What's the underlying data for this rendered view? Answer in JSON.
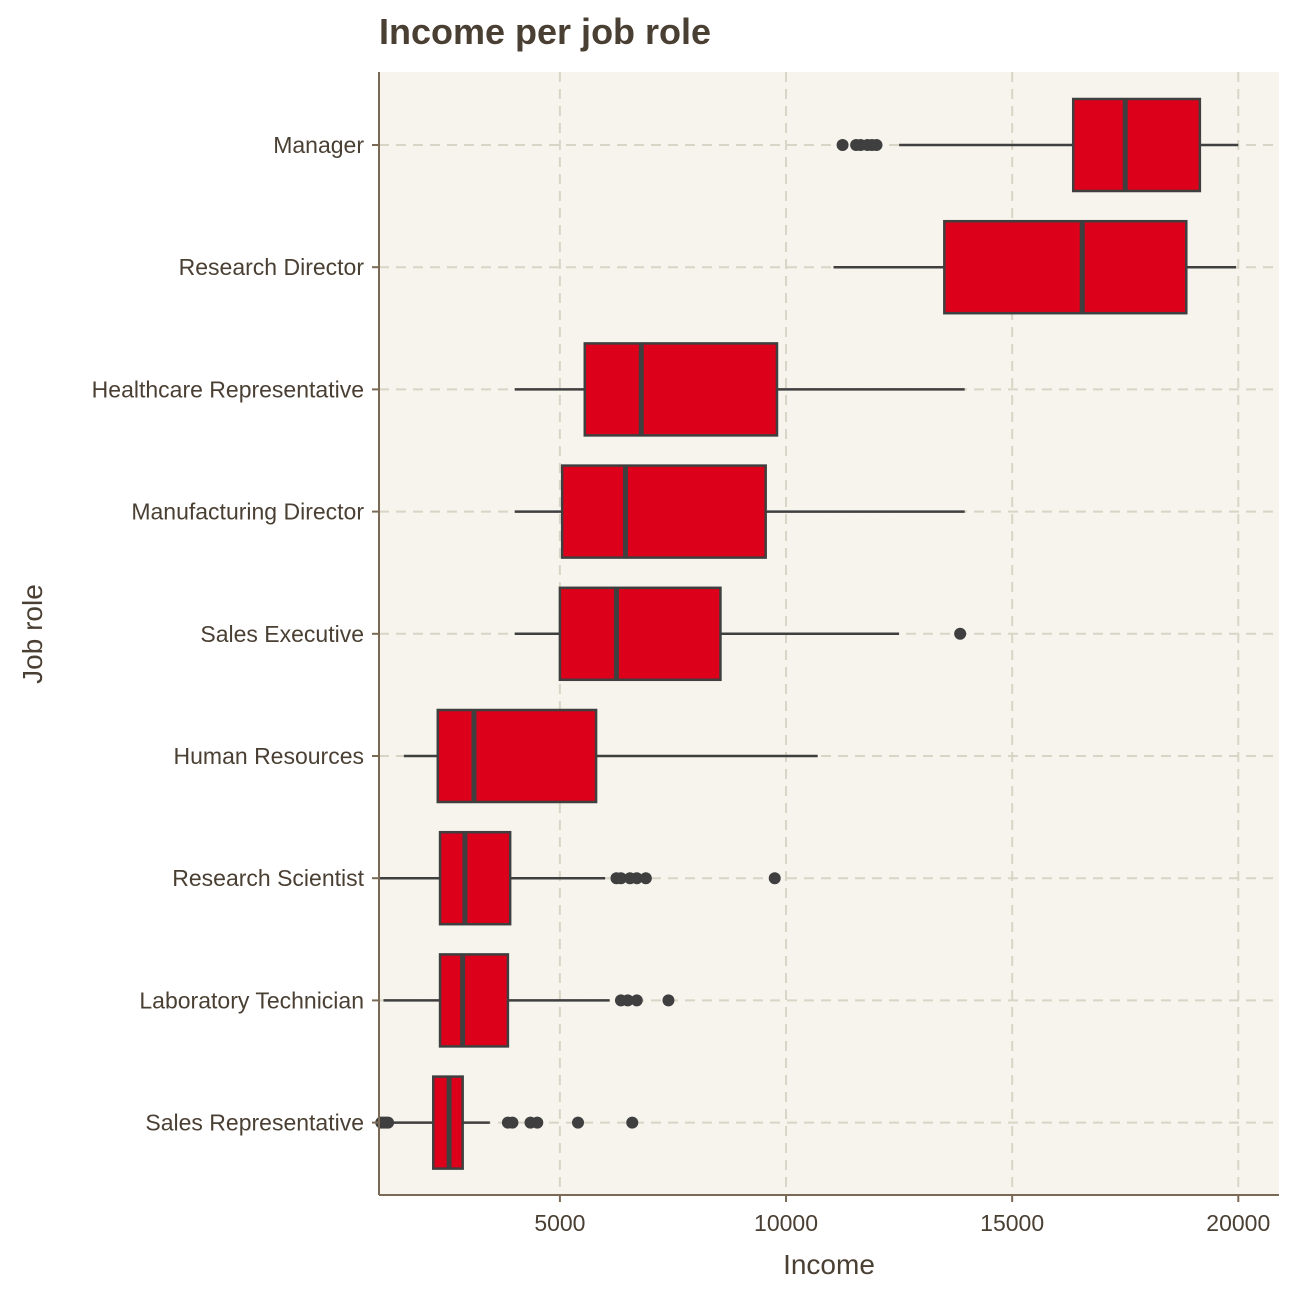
{
  "chart_data": {
    "type": "boxplot",
    "orientation": "horizontal",
    "title": "Income per job role",
    "xlabel": "Income",
    "ylabel": "Job role",
    "xlim": [
      1000,
      20900
    ],
    "xticks": [
      5000,
      10000,
      15000,
      20000
    ],
    "grid": true,
    "legend": "none",
    "colors": {
      "box_fill": "#dc001a",
      "box_stroke": "#3f3f3f",
      "panel_bg": "#f7f4ed",
      "grid": "#d9d5c6",
      "axis": "#7a6a55",
      "text": "#4a3f33"
    },
    "categories": [
      "Manager",
      "Research Director",
      "Healthcare Representative",
      "Manufacturing Director",
      "Sales Executive",
      "Human Resources",
      "Research Scientist",
      "Laboratory Technician",
      "Sales Representative"
    ],
    "boxes": [
      {
        "name": "Manager",
        "whisker_low": 12500,
        "q1": 16350,
        "median": 17500,
        "q3": 19150,
        "whisker_high": 20000,
        "outliers": [
          11250,
          11550,
          11650,
          11800,
          11900,
          12000
        ]
      },
      {
        "name": "Research Director",
        "whisker_low": 11050,
        "q1": 13500,
        "median": 16550,
        "q3": 18850,
        "whisker_high": 19950,
        "outliers": []
      },
      {
        "name": "Healthcare Representative",
        "whisker_low": 4000,
        "q1": 5550,
        "median": 6800,
        "q3": 9800,
        "whisker_high": 13950,
        "outliers": []
      },
      {
        "name": "Manufacturing Director",
        "whisker_low": 4000,
        "q1": 5050,
        "median": 6450,
        "q3": 9550,
        "whisker_high": 13950,
        "outliers": []
      },
      {
        "name": "Sales Executive",
        "whisker_low": 4000,
        "q1": 5000,
        "median": 6250,
        "q3": 8550,
        "whisker_high": 12500,
        "outliers": [
          13850
        ]
      },
      {
        "name": "Human Resources",
        "whisker_low": 1550,
        "q1": 2300,
        "median": 3100,
        "q3": 5800,
        "whisker_high": 10700,
        "outliers": []
      },
      {
        "name": "Research Scientist",
        "whisker_low": 1000,
        "q1": 2350,
        "median": 2900,
        "q3": 3900,
        "whisker_high": 6000,
        "outliers": [
          6250,
          6350,
          6550,
          6700,
          6900,
          9750
        ]
      },
      {
        "name": "Laboratory Technician",
        "whisker_low": 1100,
        "q1": 2350,
        "median": 2850,
        "q3": 3850,
        "whisker_high": 6100,
        "outliers": [
          6350,
          6500,
          6700,
          7400
        ]
      },
      {
        "name": "Sales Representative",
        "whisker_low": 1250,
        "q1": 2200,
        "median": 2550,
        "q3": 2850,
        "whisker_high": 3450,
        "outliers": [
          1050,
          1100,
          1150,
          1200,
          3850,
          3950,
          4350,
          4500,
          5400,
          6600
        ]
      }
    ]
  }
}
